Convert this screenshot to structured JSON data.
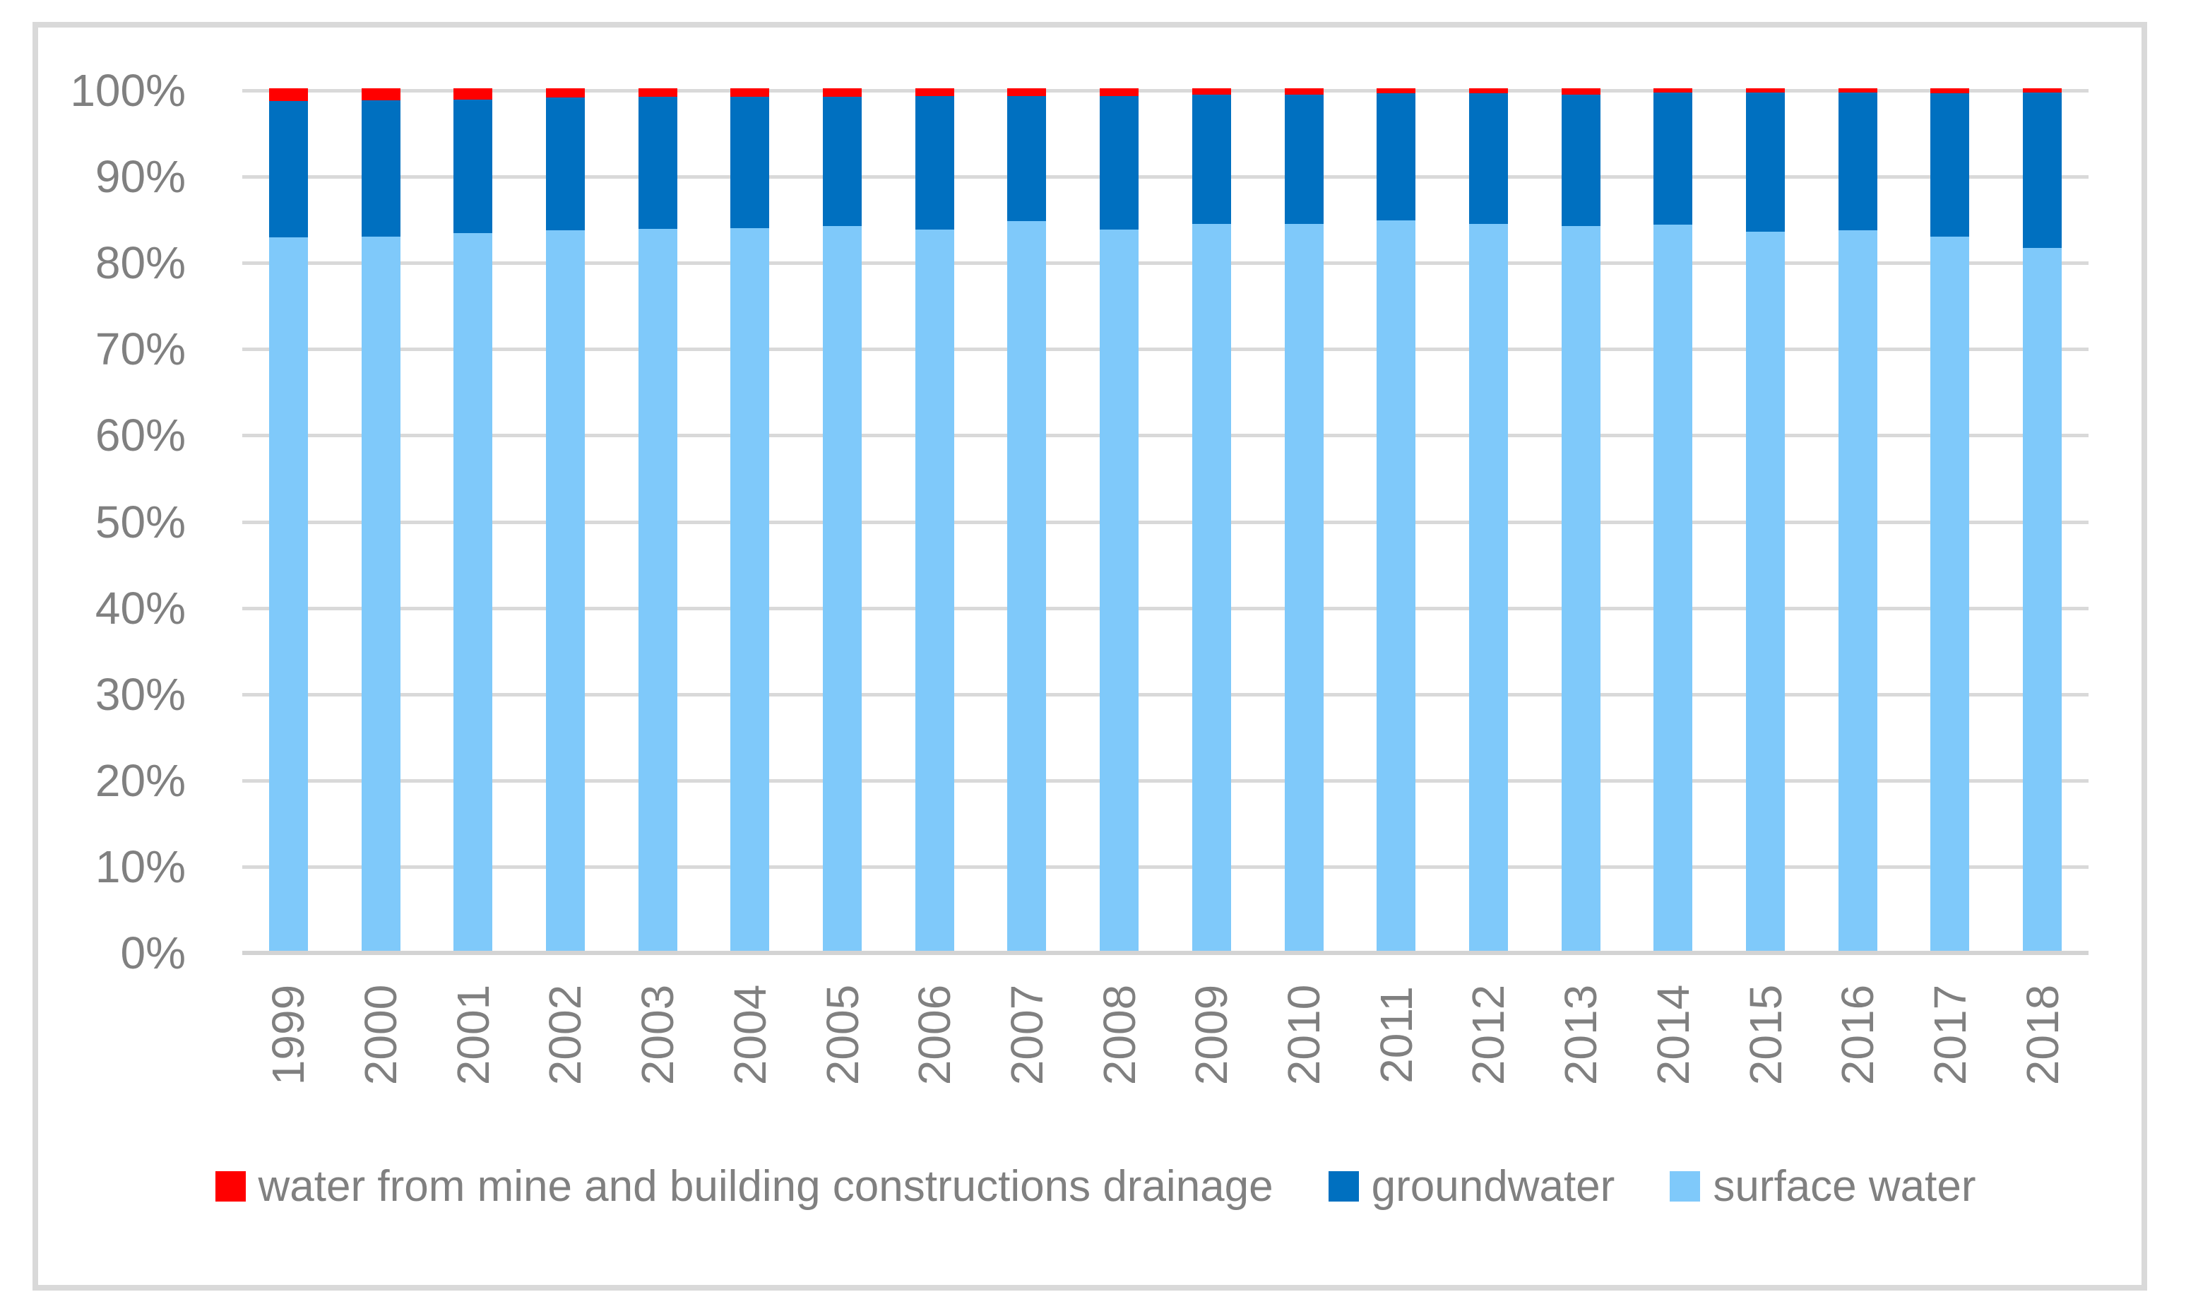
{
  "chart": {
    "background_color": "#FFFFFF",
    "frame_color": "#D9D9D9",
    "gridline_color": "#D9D9D9",
    "axis_line_color": "#D3D3D3",
    "axis_text_color": "#808080",
    "legend_text_color": "#808080"
  },
  "chart_data": {
    "type": "bar",
    "subtype": "stacked-100-percent-column",
    "title": "",
    "xlabel": "",
    "ylabel": "",
    "ylim": [
      0,
      100
    ],
    "grid": true,
    "y_ticks": [
      "0%",
      "10%",
      "20%",
      "30%",
      "40%",
      "50%",
      "60%",
      "70%",
      "80%",
      "90%",
      "100%"
    ],
    "categories": [
      "1999",
      "2000",
      "2001",
      "2002",
      "2003",
      "2004",
      "2005",
      "2006",
      "2007",
      "2008",
      "2009",
      "2010",
      "2011",
      "2012",
      "2013",
      "2014",
      "2015",
      "2016",
      "2017",
      "2018"
    ],
    "series": [
      {
        "name": "surface water",
        "color": "#7FC9FA",
        "values": [
          82.7,
          82.8,
          83.2,
          83.5,
          83.7,
          83.8,
          84.0,
          83.6,
          84.6,
          83.6,
          84.3,
          84.3,
          84.7,
          84.3,
          84.0,
          84.2,
          83.4,
          83.5,
          82.8,
          81.5
        ]
      },
      {
        "name": "groundwater",
        "color": "#0070C0",
        "values": [
          15.8,
          15.8,
          15.5,
          15.4,
          15.3,
          15.2,
          15.0,
          15.5,
          14.5,
          15.5,
          15.0,
          15.0,
          14.7,
          15.1,
          15.3,
          15.3,
          16.1,
          16.0,
          16.6,
          18.0
        ]
      },
      {
        "name": "water from mine and building constructions drainage",
        "color": "#FF0000",
        "values": [
          1.5,
          1.4,
          1.3,
          1.1,
          1.0,
          1.0,
          1.0,
          0.9,
          0.9,
          0.9,
          0.7,
          0.7,
          0.6,
          0.6,
          0.7,
          0.5,
          0.5,
          0.5,
          0.6,
          0.5
        ]
      }
    ],
    "legend_position": "bottom",
    "legend": [
      {
        "label": "water from mine and building constructions drainage",
        "color": "#FF0000"
      },
      {
        "label": "groundwater",
        "color": "#0070C0"
      },
      {
        "label": "surface water",
        "color": "#7FC9FA"
      }
    ]
  }
}
